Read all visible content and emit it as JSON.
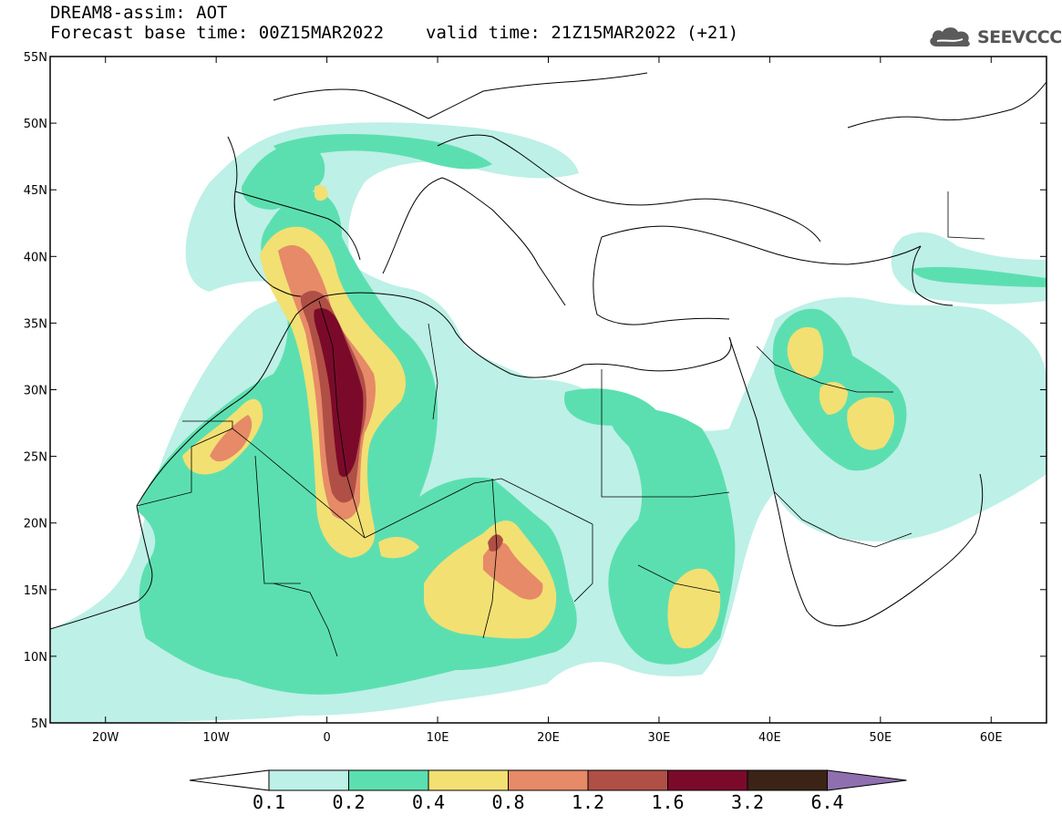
{
  "title": {
    "line1": "DREAM8-assim: AOT",
    "base_time": "Forecast base time: 00Z15MAR2022",
    "valid_time": "valid time: 21Z15MAR2022 (+21)"
  },
  "logo": {
    "icon": "cloud-icon",
    "text": "SEEVCCC"
  },
  "map": {
    "lon_range": [
      -25,
      65
    ],
    "lat_range": [
      5,
      55
    ],
    "lat_labels": [
      "55N",
      "50N",
      "45N",
      "40N",
      "35N",
      "30N",
      "25N",
      "20N",
      "15N",
      "10N",
      "5N"
    ],
    "lon_labels": [
      "20W",
      "10W",
      "0",
      "10E",
      "20E",
      "30E",
      "40E",
      "50E",
      "60E"
    ],
    "lat_values": [
      55,
      50,
      45,
      40,
      35,
      30,
      25,
      20,
      15,
      10,
      5
    ],
    "lon_values": [
      -20,
      -10,
      0,
      10,
      20,
      30,
      40,
      50,
      60
    ]
  },
  "colorbar": {
    "labels": [
      "0.1",
      "0.2",
      "0.4",
      "0.8",
      "1.2",
      "1.6",
      "3.2",
      "6.4"
    ],
    "colors": [
      "#ffffff",
      "#bdf0e6",
      "#5cdfb0",
      "#f2e073",
      "#e68a68",
      "#b04f46",
      "#7b0a2a",
      "#3b2416",
      "#8f6fae"
    ]
  },
  "legend_colors": {
    "level1": "#bdf0e6",
    "level2": "#5cdfb0",
    "level3": "#f2e073",
    "level4": "#e68a68",
    "level5": "#b04f46",
    "level6": "#7b0a2a"
  }
}
